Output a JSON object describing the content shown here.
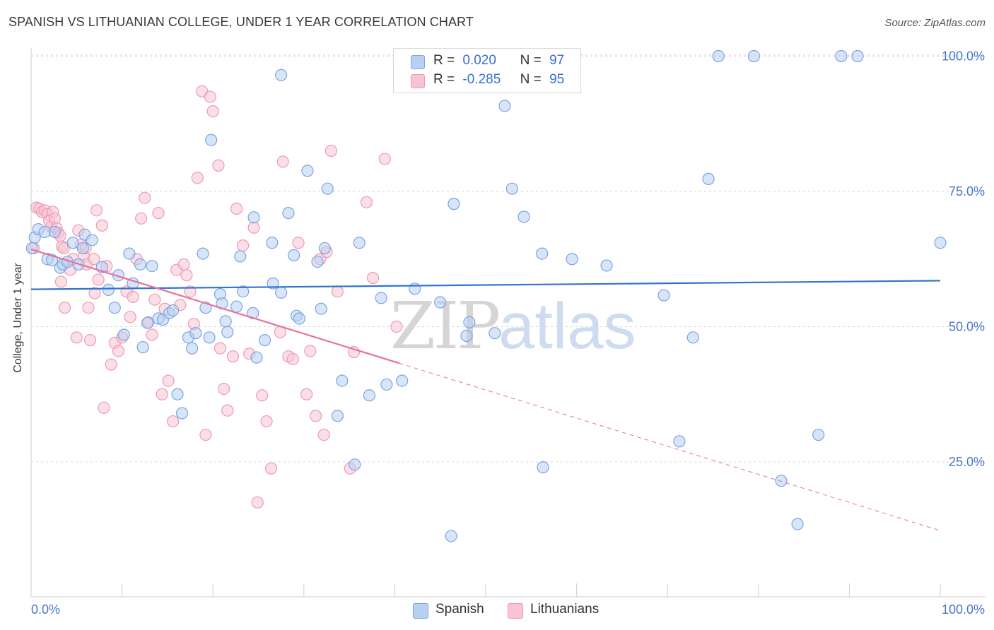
{
  "title": "SPANISH VS LITHUANIAN COLLEGE, UNDER 1 YEAR CORRELATION CHART",
  "source": "Source: ZipAtlas.com",
  "watermark": {
    "zip": "ZIP",
    "atlas": "atlas"
  },
  "colors": {
    "spanish_fill": "#b8d0f2",
    "spanish_stroke": "#7aa6e0",
    "spanish_line": "#2f74d0",
    "lithuanian_fill": "#f8c4d4",
    "lithuanian_stroke": "#ee9ab4",
    "lithuanian_line": "#e8709a",
    "axis_label": "#4a78c8",
    "grid": "#d6d6d6"
  },
  "legend": {
    "rows": [
      {
        "r_label": "R =",
        "r_value": "0.020",
        "n_label": "N =",
        "n_value": "97"
      },
      {
        "r_label": "R =",
        "r_value": "-0.285",
        "n_label": "N =",
        "n_value": "95"
      }
    ]
  },
  "bottom_legend": {
    "spanish": "Spanish",
    "lithuanians": "Lithuanians"
  },
  "chart_data": {
    "type": "scatter",
    "title": "SPANISH VS LITHUANIAN COLLEGE, UNDER 1 YEAR CORRELATION CHART",
    "xlabel": "",
    "ylabel": "College, Under 1 year",
    "xlim": [
      0,
      100
    ],
    "ylim": [
      0,
      105
    ],
    "x_tick_labels": [
      "0.0%",
      "100.0%"
    ],
    "y_ticks": [
      25,
      50,
      75,
      100
    ],
    "y_tick_labels": [
      "25.0%",
      "50.0%",
      "75.0%",
      "100.0%"
    ],
    "grid": true,
    "series": [
      {
        "name": "Spanish",
        "r": 0.02,
        "n": 97,
        "trend": {
          "x0": 0,
          "y0": 56.9,
          "x1": 100,
          "y1": 58.5,
          "dashed_from": null
        },
        "points": [
          [
            0.4,
            66.5
          ],
          [
            0.8,
            68
          ],
          [
            1.5,
            67.5
          ],
          [
            1.8,
            62.5
          ],
          [
            2.3,
            62.3
          ],
          [
            2.6,
            67.5
          ],
          [
            3.2,
            60.9
          ],
          [
            3.5,
            61.5
          ],
          [
            4,
            62
          ],
          [
            4.6,
            65.5
          ],
          [
            5.2,
            61.5
          ],
          [
            5.7,
            64.5
          ],
          [
            5.9,
            67
          ],
          [
            6.7,
            66
          ],
          [
            7.8,
            61
          ],
          [
            8.5,
            56.8
          ],
          [
            9.2,
            53.5
          ],
          [
            9.6,
            59.5
          ],
          [
            10.2,
            48.5
          ],
          [
            10.8,
            63.5
          ],
          [
            11.2,
            58
          ],
          [
            12,
            61.5
          ],
          [
            12.3,
            46.2
          ],
          [
            12.8,
            50.7
          ],
          [
            13.3,
            61.2
          ],
          [
            14,
            51.5
          ],
          [
            14.5,
            51.3
          ],
          [
            15.2,
            52.5
          ],
          [
            15.6,
            53
          ],
          [
            16.1,
            37.5
          ],
          [
            16.6,
            34
          ],
          [
            17.3,
            48
          ],
          [
            17.7,
            46
          ],
          [
            18.1,
            48.8
          ],
          [
            18.9,
            63.5
          ],
          [
            19.2,
            53.5
          ],
          [
            19.6,
            48
          ],
          [
            19.8,
            84.5
          ],
          [
            20.8,
            56
          ],
          [
            21,
            54.3
          ],
          [
            21.4,
            51
          ],
          [
            21.6,
            49
          ],
          [
            22.6,
            53.7
          ],
          [
            23,
            63
          ],
          [
            23.3,
            56.5
          ],
          [
            24.4,
            52.5
          ],
          [
            24.5,
            70.2
          ],
          [
            24.8,
            44.3
          ],
          [
            25.7,
            47.5
          ],
          [
            26.5,
            65.5
          ],
          [
            26.6,
            58
          ],
          [
            27.5,
            56.3
          ],
          [
            27.5,
            96.5
          ],
          [
            28.3,
            71
          ],
          [
            28.9,
            63.2
          ],
          [
            29.2,
            52
          ],
          [
            29.5,
            51.5
          ],
          [
            30.4,
            78.8
          ],
          [
            31.5,
            62
          ],
          [
            31.9,
            53.3
          ],
          [
            32.3,
            64.5
          ],
          [
            32.6,
            75.5
          ],
          [
            33.7,
            33.5
          ],
          [
            34.2,
            40
          ],
          [
            35.6,
            24.5
          ],
          [
            36.1,
            65.5
          ],
          [
            37.2,
            37.3
          ],
          [
            38.5,
            55.3
          ],
          [
            39.1,
            39.3
          ],
          [
            40.8,
            40
          ],
          [
            42.2,
            57
          ],
          [
            45,
            54.5
          ],
          [
            46.2,
            11.3
          ],
          [
            46.5,
            72.7
          ],
          [
            47.9,
            48.3
          ],
          [
            48.2,
            50.8
          ],
          [
            51,
            48.8
          ],
          [
            52.1,
            90.8
          ],
          [
            52.9,
            75.5
          ],
          [
            54.2,
            70.3
          ],
          [
            56.2,
            63.5
          ],
          [
            56.3,
            24
          ],
          [
            59.5,
            62.5
          ],
          [
            63.3,
            61.3
          ],
          [
            69.6,
            55.8
          ],
          [
            71.3,
            28.8
          ],
          [
            72.8,
            48
          ],
          [
            74.5,
            77.3
          ],
          [
            75.6,
            100
          ],
          [
            79.5,
            100
          ],
          [
            82.5,
            21.5
          ],
          [
            84.3,
            13.5
          ],
          [
            86.6,
            30
          ],
          [
            89.1,
            100
          ],
          [
            90.9,
            100
          ],
          [
            100,
            65.5
          ],
          [
            0.1,
            64.5
          ]
        ]
      },
      {
        "name": "Lithuanians",
        "r": -0.285,
        "n": 95,
        "trend": {
          "x0": 0,
          "y0": 64.3,
          "x1": 100,
          "y1": 12.3,
          "dashed_from": 40.5
        },
        "points": [
          [
            0.3,
            64.5
          ],
          [
            0.6,
            72
          ],
          [
            0.9,
            71.8
          ],
          [
            1.2,
            71.2
          ],
          [
            1.5,
            71.5
          ],
          [
            1.8,
            70.8
          ],
          [
            2,
            69.5
          ],
          [
            2.2,
            68.5
          ],
          [
            2.4,
            71.2
          ],
          [
            2.6,
            70
          ],
          [
            2.8,
            68.2
          ],
          [
            3,
            67.3
          ],
          [
            3.2,
            66.8
          ],
          [
            3.4,
            64.8
          ],
          [
            3.6,
            64.5
          ],
          [
            3.3,
            58.3
          ],
          [
            3.7,
            53.5
          ],
          [
            4.3,
            60.5
          ],
          [
            4.6,
            62.5
          ],
          [
            5,
            48
          ],
          [
            5.2,
            67.8
          ],
          [
            5.5,
            65.2
          ],
          [
            5.8,
            63
          ],
          [
            6,
            64.5
          ],
          [
            6.1,
            61.5
          ],
          [
            6.3,
            53.5
          ],
          [
            6.5,
            47.5
          ],
          [
            6.9,
            62.5
          ],
          [
            7,
            56.2
          ],
          [
            7.2,
            71.5
          ],
          [
            7.4,
            58.7
          ],
          [
            7.8,
            68.7
          ],
          [
            8,
            35
          ],
          [
            8.3,
            61.2
          ],
          [
            8.8,
            43
          ],
          [
            9.2,
            47
          ],
          [
            9.6,
            45.5
          ],
          [
            10,
            48
          ],
          [
            10.5,
            56.5
          ],
          [
            10.9,
            51.8
          ],
          [
            11.2,
            55.5
          ],
          [
            11.6,
            62.5
          ],
          [
            12.1,
            70
          ],
          [
            12.5,
            73.8
          ],
          [
            12.9,
            50.8
          ],
          [
            13.3,
            48.5
          ],
          [
            13.6,
            55
          ],
          [
            14,
            71
          ],
          [
            14.4,
            37.5
          ],
          [
            14.7,
            53.3
          ],
          [
            15.1,
            40
          ],
          [
            15.6,
            32.5
          ],
          [
            16,
            60.5
          ],
          [
            16.4,
            54
          ],
          [
            16.8,
            61.5
          ],
          [
            17.1,
            59.5
          ],
          [
            17.5,
            56.5
          ],
          [
            17.9,
            50.5
          ],
          [
            18.3,
            77.5
          ],
          [
            18.8,
            93.5
          ],
          [
            19.2,
            30
          ],
          [
            19.7,
            92.5
          ],
          [
            20,
            89.8
          ],
          [
            20.6,
            79.8
          ],
          [
            20.8,
            46
          ],
          [
            21.2,
            38.5
          ],
          [
            21.6,
            34.5
          ],
          [
            22.2,
            44.5
          ],
          [
            22.6,
            71.8
          ],
          [
            23.3,
            65
          ],
          [
            24,
            45
          ],
          [
            24.5,
            68.3
          ],
          [
            24.9,
            17.5
          ],
          [
            25.4,
            37.3
          ],
          [
            25.9,
            32.5
          ],
          [
            26.4,
            23.8
          ],
          [
            27.4,
            49
          ],
          [
            27.7,
            80.5
          ],
          [
            28.3,
            44.5
          ],
          [
            28.8,
            44
          ],
          [
            29.4,
            65.5
          ],
          [
            30.3,
            37.5
          ],
          [
            30.7,
            45.5
          ],
          [
            31.3,
            33.5
          ],
          [
            31.8,
            62.5
          ],
          [
            32.2,
            30
          ],
          [
            32.5,
            63.8
          ],
          [
            33,
            82.5
          ],
          [
            33.7,
            56.5
          ],
          [
            35.1,
            23.8
          ],
          [
            35.5,
            45.3
          ],
          [
            36.9,
            73
          ],
          [
            37.6,
            59
          ],
          [
            38.9,
            81
          ],
          [
            40.2,
            50
          ]
        ]
      }
    ]
  }
}
